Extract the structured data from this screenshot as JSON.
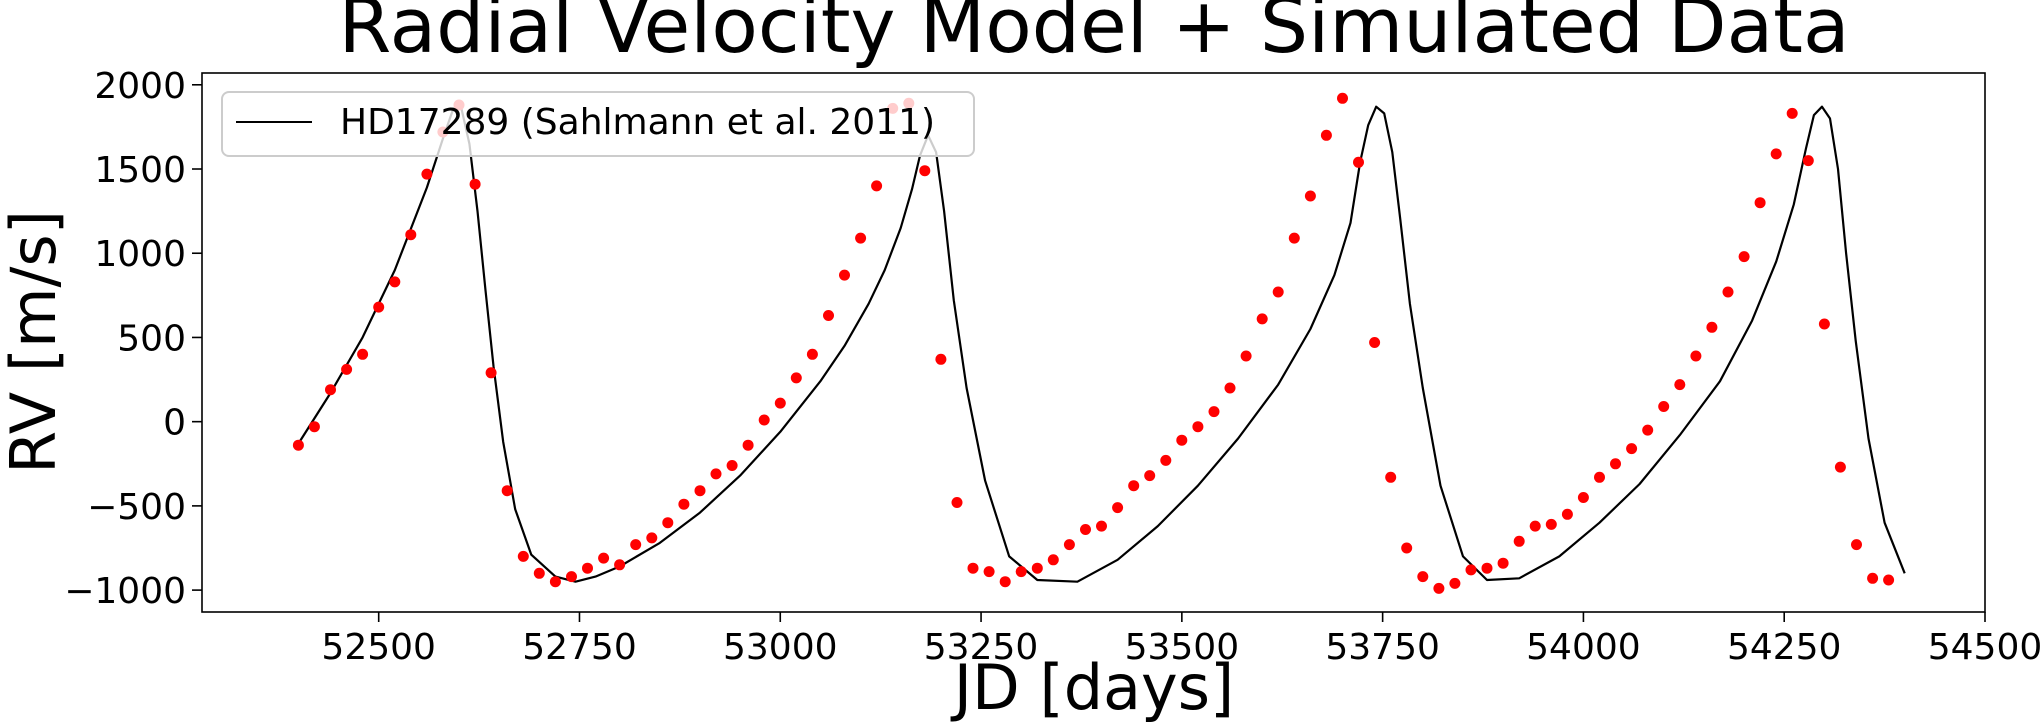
{
  "chart_data": {
    "type": "line",
    "title": "Radial Velocity Model + Simulated Data",
    "xlabel": "JD [days]",
    "ylabel": "RV [m/s]",
    "xlim": [
      52280,
      54500
    ],
    "ylim": [
      -1130,
      2070
    ],
    "xticks": [
      52500,
      52750,
      53000,
      53250,
      53500,
      53750,
      54000,
      54250,
      54500
    ],
    "yticks": [
      -1000,
      -500,
      0,
      500,
      1000,
      1500,
      2000
    ],
    "xtick_labels": [
      "52500",
      "52750",
      "53000",
      "53250",
      "53500",
      "53750",
      "54000",
      "54250",
      "54500"
    ],
    "ytick_labels": [
      "−1000",
      "−500",
      "0",
      "500",
      "1000",
      "1500",
      "2000"
    ],
    "grid": false,
    "legend": {
      "placement": "top-left",
      "entries": [
        "HD17289 (Sahlmann et al. 2011)"
      ]
    },
    "series": [
      {
        "name": "HD17289 (Sahlmann et al. 2011)",
        "kind": "line",
        "color": "#000000",
        "x": [
          52400,
          52440,
          52480,
          52520,
          52560,
          52580,
          52593,
          52603,
          52613,
          52623,
          52633,
          52643,
          52655,
          52670,
          52690,
          52720,
          52745,
          52770,
          52800,
          52850,
          52900,
          52950,
          53000,
          53050,
          53080,
          53110,
          53130,
          53150,
          53164,
          53174,
          53184,
          53194,
          53204,
          53216,
          53232,
          53255,
          53285,
          53320,
          53370,
          53420,
          53470,
          53520,
          53570,
          53620,
          53660,
          53690,
          53710,
          53722,
          53732,
          53742,
          53752,
          53762,
          53772,
          53784,
          53800,
          53822,
          53850,
          53880,
          53920,
          53970,
          54020,
          54070,
          54120,
          54170,
          54210,
          54240,
          54262,
          54277,
          54287,
          54297,
          54307,
          54317,
          54327,
          54339,
          54355,
          54375,
          54400
        ],
        "y": [
          -130,
          170,
          500,
          900,
          1390,
          1680,
          1860,
          1860,
          1650,
          1250,
          780,
          330,
          -120,
          -520,
          -790,
          -920,
          -950,
          -920,
          -860,
          -720,
          -540,
          -320,
          -60,
          240,
          450,
          700,
          900,
          1150,
          1380,
          1580,
          1700,
          1600,
          1250,
          720,
          200,
          -350,
          -800,
          -940,
          -950,
          -820,
          -620,
          -380,
          -100,
          220,
          550,
          870,
          1180,
          1540,
          1760,
          1870,
          1830,
          1600,
          1200,
          700,
          200,
          -380,
          -800,
          -940,
          -930,
          -800,
          -600,
          -370,
          -80,
          240,
          600,
          950,
          1290,
          1620,
          1820,
          1870,
          1800,
          1500,
          1000,
          480,
          -100,
          -600,
          -900
        ]
      },
      {
        "name": "",
        "kind": "scatter",
        "color": "#ff0000",
        "x": [
          52400,
          52420,
          52440,
          52460,
          52480,
          52500,
          52520,
          52540,
          52560,
          52580,
          52600,
          52620,
          52640,
          52660,
          52680,
          52700,
          52720,
          52740,
          52760,
          52780,
          52800,
          52820,
          52840,
          52860,
          52880,
          52900,
          52920,
          52940,
          52960,
          52980,
          53000,
          53020,
          53040,
          53060,
          53080,
          53100,
          53120,
          53140,
          53160,
          53180,
          53200,
          53220,
          53240,
          53260,
          53280,
          53300,
          53320,
          53340,
          53360,
          53380,
          53400,
          53420,
          53440,
          53460,
          53480,
          53500,
          53520,
          53540,
          53560,
          53580,
          53600,
          53620,
          53640,
          53660,
          53680,
          53700,
          53720,
          53740,
          53760,
          53780,
          53800,
          53820,
          53840,
          53860,
          53880,
          53900,
          53920,
          53940,
          53960,
          53980,
          54000,
          54020,
          54040,
          54060,
          54080,
          54100,
          54120,
          54140,
          54160,
          54180,
          54200,
          54220,
          54240,
          54260,
          54280,
          54300,
          54320,
          54340,
          54360,
          54380
        ],
        "y": [
          -140,
          -30,
          190,
          310,
          400,
          680,
          830,
          1110,
          1470,
          1720,
          1880,
          1410,
          290,
          -410,
          -800,
          -900,
          -950,
          -920,
          -870,
          -810,
          -850,
          -730,
          -690,
          -600,
          -490,
          -410,
          -310,
          -260,
          -140,
          10,
          110,
          260,
          400,
          630,
          870,
          1090,
          1400,
          1860,
          1890,
          1490,
          370,
          -480,
          -870,
          -890,
          -950,
          -890,
          -870,
          -820,
          -730,
          -640,
          -620,
          -510,
          -380,
          -320,
          -230,
          -110,
          -30,
          60,
          200,
          390,
          610,
          770,
          1090,
          1340,
          1700,
          1920,
          1540,
          470,
          -330,
          -750,
          -920,
          -990,
          -960,
          -880,
          -870,
          -840,
          -710,
          -620,
          -610,
          -550,
          -450,
          -330,
          -250,
          -160,
          -50,
          90,
          220,
          390,
          560,
          770,
          980,
          1300,
          1590,
          1830,
          1550,
          580,
          -270,
          -730,
          -930,
          -940
        ]
      }
    ]
  }
}
